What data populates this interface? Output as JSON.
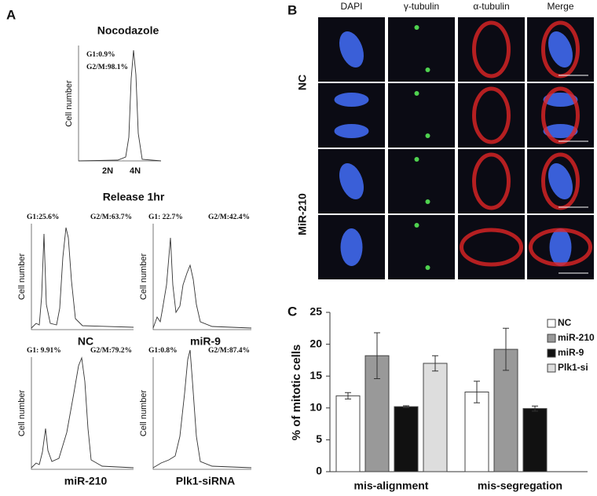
{
  "panels": {
    "a": {
      "label": "A",
      "top": {
        "title": "Nocodazole",
        "gate_g1": "G1:0.9%",
        "gate_g2m": "G2/M:98.1%",
        "ylabel": "Cell number",
        "x_2n": "2N",
        "x_4n": "4N"
      },
      "subtitle": "Release 1hr",
      "histograms": [
        {
          "name": "NC",
          "gate_g1": "G1:25.6%",
          "gate_g2m": "G2/M:63.7%",
          "ylabel": "Cell number"
        },
        {
          "name": "miR-9",
          "gate_g1": "G1: 22.7%",
          "gate_g2m": "G2/M:42.4%",
          "ylabel": "Cell number"
        },
        {
          "name": "miR-210",
          "gate_g1": "G1: 9.91%",
          "gate_g2m": "G2/M:79.2%",
          "ylabel": "Cell number"
        },
        {
          "name": "Plk1-siRNA",
          "gate_g1": "G1:0.8%",
          "gate_g2m": "G2/M:87.4%",
          "ylabel": "Cell number"
        }
      ]
    },
    "b": {
      "label": "B",
      "columns": [
        "DAPI",
        "γ-tubulin",
        "α-tubulin",
        "Merge"
      ],
      "rows": [
        "NC",
        "MiR-210"
      ]
    },
    "c": {
      "label": "C"
    }
  },
  "chart_data": [
    {
      "type": "bar",
      "ylabel": "% of mitotic cells",
      "categories": [
        "mis-alignment",
        "mis-segregation"
      ],
      "series": [
        {
          "name": "NC",
          "color": "#ffffff",
          "values": [
            11.9,
            12.5
          ],
          "errors": [
            0.5,
            1.7
          ]
        },
        {
          "name": "miR-210",
          "color": "#999999",
          "values": [
            18.2,
            19.2
          ],
          "errors": [
            3.6,
            3.3
          ]
        },
        {
          "name": "miR-9",
          "color": "#111111",
          "values": [
            10.2,
            9.9
          ],
          "errors": [
            0.15,
            0.4
          ]
        },
        {
          "name": "Plk1-si",
          "color": "#dddddd",
          "values": [
            17.0,
            null
          ],
          "errors": [
            1.2,
            null
          ]
        }
      ],
      "ylim": [
        0,
        25
      ],
      "yticks": [
        0,
        5,
        10,
        15,
        20,
        25
      ],
      "legend": "upper right"
    }
  ]
}
